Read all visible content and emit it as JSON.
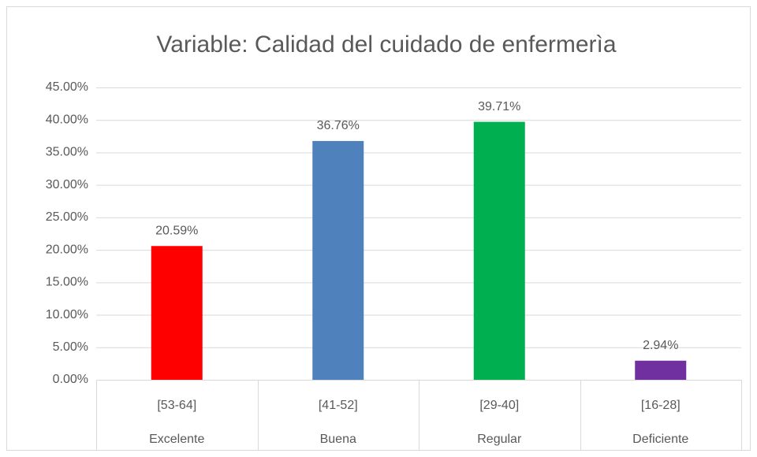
{
  "chart_data": {
    "type": "bar",
    "title": "Variable: Calidad del cuidado de enfermerìa",
    "categories": [
      "[53-64]",
      "[41-52]",
      "[29-40]",
      "[16-28]"
    ],
    "category_groups": [
      "Excelente",
      "Buena",
      "Regular",
      "Deficiente"
    ],
    "values": [
      20.59,
      36.76,
      39.71,
      2.94
    ],
    "value_labels": [
      "20.59%",
      "36.76%",
      "39.71%",
      "2.94%"
    ],
    "colors": [
      "#ff0000",
      "#4f81bd",
      "#00b050",
      "#7030a0"
    ],
    "ylim": [
      0,
      45
    ],
    "yticks": [
      {
        "value": 0,
        "label": "0.00%"
      },
      {
        "value": 5,
        "label": "5.00%"
      },
      {
        "value": 10,
        "label": "10.00%"
      },
      {
        "value": 15,
        "label": "15.00%"
      },
      {
        "value": 20,
        "label": "20.00%"
      },
      {
        "value": 25,
        "label": "25.00%"
      },
      {
        "value": 30,
        "label": "30.00%"
      },
      {
        "value": 35,
        "label": "35.00%"
      },
      {
        "value": 40,
        "label": "40.00%"
      },
      {
        "value": 45,
        "label": "45.00%"
      }
    ],
    "grid": true
  }
}
